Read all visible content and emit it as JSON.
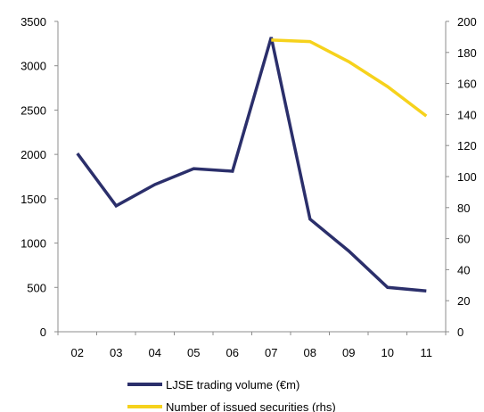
{
  "chart_data": {
    "type": "line",
    "categories": [
      "02",
      "03",
      "04",
      "05",
      "06",
      "07",
      "08",
      "09",
      "10",
      "11"
    ],
    "series": [
      {
        "name": "LJSE trading volume (€m)",
        "axis": "left",
        "color": "#2b2f6b",
        "values": [
          2010,
          1420,
          1660,
          1840,
          1810,
          3320,
          1270,
          910,
          500,
          460
        ]
      },
      {
        "name": "Number of issued securities (rhs)",
        "axis": "right",
        "color": "#f6d21c",
        "values": [
          null,
          null,
          null,
          null,
          null,
          188,
          187,
          174,
          158,
          139
        ]
      }
    ],
    "y_left": {
      "min": 0,
      "max": 3500,
      "ticks": [
        "0",
        "500",
        "1000",
        "1500",
        "2000",
        "2500",
        "3000",
        "3500"
      ]
    },
    "y_right": {
      "min": 0,
      "max": 200,
      "ticks": [
        "0",
        "20",
        "40",
        "60",
        "80",
        "100",
        "120",
        "140",
        "160",
        "180",
        "200"
      ]
    },
    "grid": false,
    "legend_position": "bottom"
  }
}
